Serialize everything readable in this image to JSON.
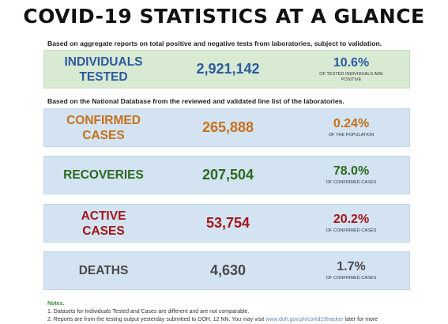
{
  "title": "COVID-19 STATISTICS AT A GLANCE",
  "intro_1": "Based on aggregate reports on total positive and negative tests from laboratories, subject to validation.",
  "intro_2": "Based on the National Database from the reviewed and validated line list of the laboratories.",
  "colors": {
    "blue_text": "#2a5aa0",
    "orange_text": "#c8701a",
    "green_text": "#2d6a1e",
    "red_text": "#a4161a",
    "gray_text": "#4a4a4a",
    "green_bg": "#d9ead3",
    "blue_bg": "#d3e3f2"
  },
  "cards": [
    {
      "label": "INDIVIDUALS\nTESTED",
      "value": "2,921,142",
      "pct": "10.6%",
      "sub": "OF TESTED INDIVIDUALS ARE\nPOSITIVE"
    },
    {
      "label": "CONFIRMED\nCASES",
      "value": "265,888",
      "pct": "0.24%",
      "sub": "OF THE POPULATION"
    },
    {
      "label": "RECOVERIES",
      "value": "207,504",
      "pct": "78.0%",
      "sub": "OF CONFIRMED CASES"
    },
    {
      "label": "ACTIVE\nCASES",
      "value": "53,754",
      "pct": "20.2%",
      "sub": "OF CONFIRMED CASES"
    },
    {
      "label": "DEATHS",
      "value": "4,630",
      "pct": "1.7%",
      "sub": "OF CONFIRMED CASES"
    }
  ],
  "notes": {
    "title": "Notes.",
    "line_1": "1. Datasets for Individuals Tested and Cases are different and are not comparable.",
    "line_2_start": "2. Reports are from the testing output yesterday submitted to DOH, 12 NN. You may visit",
    "line_2_link": "www.doh.gov.ph/covid19tracker",
    "line_2_end": "later for more"
  }
}
